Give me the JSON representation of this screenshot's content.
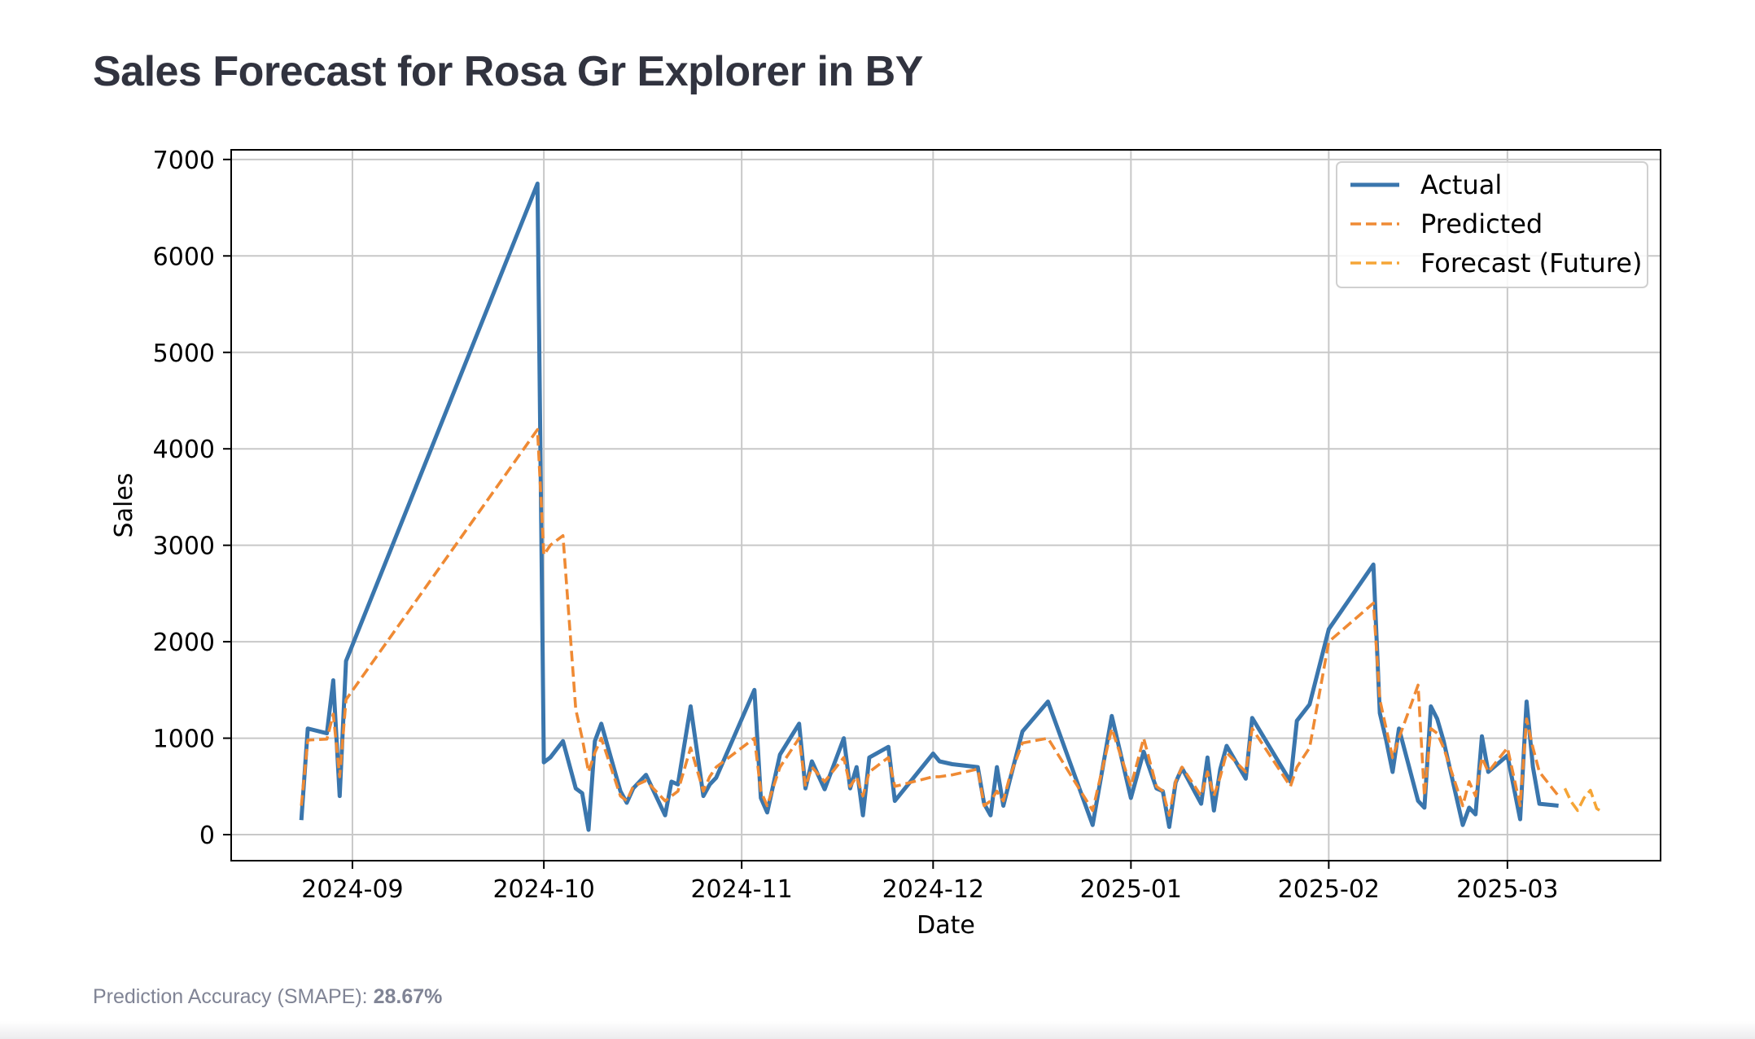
{
  "page": {
    "title": "Sales Forecast for Rosa Gr Explorer in BY",
    "footer": {
      "label": "Prediction Accuracy (SMAPE):",
      "value": "28.67%"
    }
  },
  "colors": {
    "actual": "#3a76ad",
    "predicted": "#ef8a34",
    "forecast": "#f5a536"
  },
  "chart_data": {
    "type": "line",
    "title": "Sales Forecast for Rosa Gr Explorer in BY",
    "xlabel": "Date",
    "ylabel": "Sales",
    "xlim": [
      "2024-08-13",
      "2025-03-25"
    ],
    "ylim": [
      -270,
      7100
    ],
    "x_ticks": [
      "2024-09-01",
      "2024-10-01",
      "2024-11-01",
      "2024-12-01",
      "2025-01-01",
      "2025-02-01",
      "2025-03-01"
    ],
    "x_tick_labels": [
      "2024-09",
      "2024-10",
      "2024-11",
      "2024-12",
      "2025-01",
      "2025-02",
      "2025-03"
    ],
    "y_ticks": [
      0,
      1000,
      2000,
      3000,
      4000,
      5000,
      6000,
      7000
    ],
    "grid": true,
    "legend": "top-right",
    "series": [
      {
        "name": "Actual",
        "style": "solid",
        "x": [
          "2024-08-24",
          "2024-08-25",
          "2024-08-28",
          "2024-08-29",
          "2024-08-30",
          "2024-08-31",
          "2024-09-30",
          "2024-10-01",
          "2024-10-02",
          "2024-10-04",
          "2024-10-06",
          "2024-10-07",
          "2024-10-08",
          "2024-10-09",
          "2024-10-10",
          "2024-10-13",
          "2024-10-14",
          "2024-10-15",
          "2024-10-17",
          "2024-10-20",
          "2024-10-21",
          "2024-10-22",
          "2024-10-24",
          "2024-10-26",
          "2024-10-27",
          "2024-10-28",
          "2024-11-03",
          "2024-11-04",
          "2024-11-05",
          "2024-11-07",
          "2024-11-10",
          "2024-11-11",
          "2024-11-12",
          "2024-11-14",
          "2024-11-17",
          "2024-11-18",
          "2024-11-19",
          "2024-11-20",
          "2024-11-21",
          "2024-11-24",
          "2024-11-25",
          "2024-12-01",
          "2024-12-02",
          "2024-12-04",
          "2024-12-08",
          "2024-12-09",
          "2024-12-10",
          "2024-12-11",
          "2024-12-12",
          "2024-12-13",
          "2024-12-15",
          "2024-12-19",
          "2024-12-26",
          "2024-12-29",
          "2025-01-01",
          "2025-01-03",
          "2025-01-05",
          "2025-01-06",
          "2025-01-07",
          "2025-01-08",
          "2025-01-09",
          "2025-01-12",
          "2025-01-13",
          "2025-01-14",
          "2025-01-15",
          "2025-01-16",
          "2025-01-19",
          "2025-01-20",
          "2025-01-26",
          "2025-01-27",
          "2025-01-29",
          "2025-02-01",
          "2025-02-08",
          "2025-02-09",
          "2025-02-10",
          "2025-02-11",
          "2025-02-12",
          "2025-02-15",
          "2025-02-16",
          "2025-02-17",
          "2025-02-18",
          "2025-02-19",
          "2025-02-22",
          "2025-02-23",
          "2025-02-24",
          "2025-02-25",
          "2025-02-26",
          "2025-03-01",
          "2025-03-03",
          "2025-03-04",
          "2025-03-05",
          "2025-03-06",
          "2025-03-09"
        ],
        "values": [
          150,
          1100,
          1050,
          1600,
          400,
          1800,
          6750,
          750,
          800,
          970,
          480,
          430,
          50,
          970,
          1150,
          450,
          330,
          480,
          620,
          200,
          550,
          520,
          1330,
          400,
          520,
          590,
          1500,
          380,
          230,
          830,
          1150,
          480,
          760,
          470,
          1000,
          480,
          700,
          200,
          800,
          910,
          350,
          840,
          760,
          730,
          700,
          320,
          200,
          700,
          300,
          560,
          1070,
          1380,
          100,
          1230,
          380,
          860,
          480,
          450,
          80,
          540,
          690,
          320,
          800,
          250,
          680,
          920,
          580,
          1210,
          550,
          1180,
          1350,
          2130,
          2800,
          1260,
          980,
          650,
          1100,
          350,
          280,
          1330,
          1200,
          970,
          100,
          280,
          210,
          1020,
          650,
          820,
          160,
          1380,
          700,
          320,
          300
        ]
      },
      {
        "name": "Predicted",
        "style": "dashed",
        "x": [
          "2024-08-24",
          "2024-08-25",
          "2024-08-28",
          "2024-08-29",
          "2024-08-30",
          "2024-08-31",
          "2024-09-30",
          "2024-10-01",
          "2024-10-02",
          "2024-10-04",
          "2024-10-06",
          "2024-10-07",
          "2024-10-08",
          "2024-10-09",
          "2024-10-10",
          "2024-10-13",
          "2024-10-14",
          "2024-10-15",
          "2024-10-17",
          "2024-10-20",
          "2024-10-21",
          "2024-10-22",
          "2024-10-24",
          "2024-10-26",
          "2024-10-27",
          "2024-10-28",
          "2024-11-03",
          "2024-11-04",
          "2024-11-05",
          "2024-11-07",
          "2024-11-10",
          "2024-11-11",
          "2024-11-12",
          "2024-11-14",
          "2024-11-17",
          "2024-11-18",
          "2024-11-19",
          "2024-11-20",
          "2024-11-21",
          "2024-11-24",
          "2024-11-25",
          "2024-12-01",
          "2024-12-02",
          "2024-12-04",
          "2024-12-08",
          "2024-12-09",
          "2024-12-10",
          "2024-12-11",
          "2024-12-12",
          "2024-12-13",
          "2024-12-15",
          "2024-12-19",
          "2024-12-26",
          "2024-12-29",
          "2025-01-01",
          "2025-01-03",
          "2025-01-05",
          "2025-01-06",
          "2025-01-07",
          "2025-01-08",
          "2025-01-09",
          "2025-01-12",
          "2025-01-13",
          "2025-01-14",
          "2025-01-15",
          "2025-01-16",
          "2025-01-19",
          "2025-01-20",
          "2025-01-26",
          "2025-01-27",
          "2025-01-29",
          "2025-02-01",
          "2025-02-08",
          "2025-02-09",
          "2025-02-10",
          "2025-02-11",
          "2025-02-12",
          "2025-02-15",
          "2025-02-16",
          "2025-02-17",
          "2025-02-18",
          "2025-02-19",
          "2025-02-22",
          "2025-02-23",
          "2025-02-24",
          "2025-02-25",
          "2025-02-26",
          "2025-03-01",
          "2025-03-03",
          "2025-03-04",
          "2025-03-05",
          "2025-03-06",
          "2025-03-09"
        ],
        "values": [
          300,
          980,
          990,
          1250,
          600,
          1400,
          4200,
          2900,
          3000,
          3100,
          1300,
          1000,
          650,
          850,
          1000,
          400,
          350,
          500,
          560,
          350,
          400,
          450,
          900,
          450,
          600,
          700,
          1000,
          450,
          300,
          700,
          1000,
          500,
          700,
          550,
          800,
          500,
          600,
          400,
          650,
          800,
          500,
          600,
          600,
          620,
          680,
          300,
          350,
          450,
          350,
          600,
          950,
          1000,
          250,
          1100,
          500,
          1000,
          500,
          450,
          200,
          550,
          700,
          400,
          650,
          400,
          600,
          850,
          650,
          1100,
          500,
          700,
          900,
          2000,
          2400,
          1400,
          1100,
          800,
          1000,
          1550,
          400,
          1100,
          1050,
          900,
          300,
          550,
          400,
          800,
          650,
          900,
          300,
          1200,
          900,
          650,
          400
        ]
      },
      {
        "name": "Forecast (Future)",
        "style": "dashed",
        "x": [
          "2025-03-10",
          "2025-03-11",
          "2025-03-12",
          "2025-03-13",
          "2025-03-14",
          "2025-03-15",
          "2025-03-16"
        ],
        "values": [
          480,
          340,
          250,
          380,
          460,
          270,
          230
        ]
      }
    ]
  }
}
